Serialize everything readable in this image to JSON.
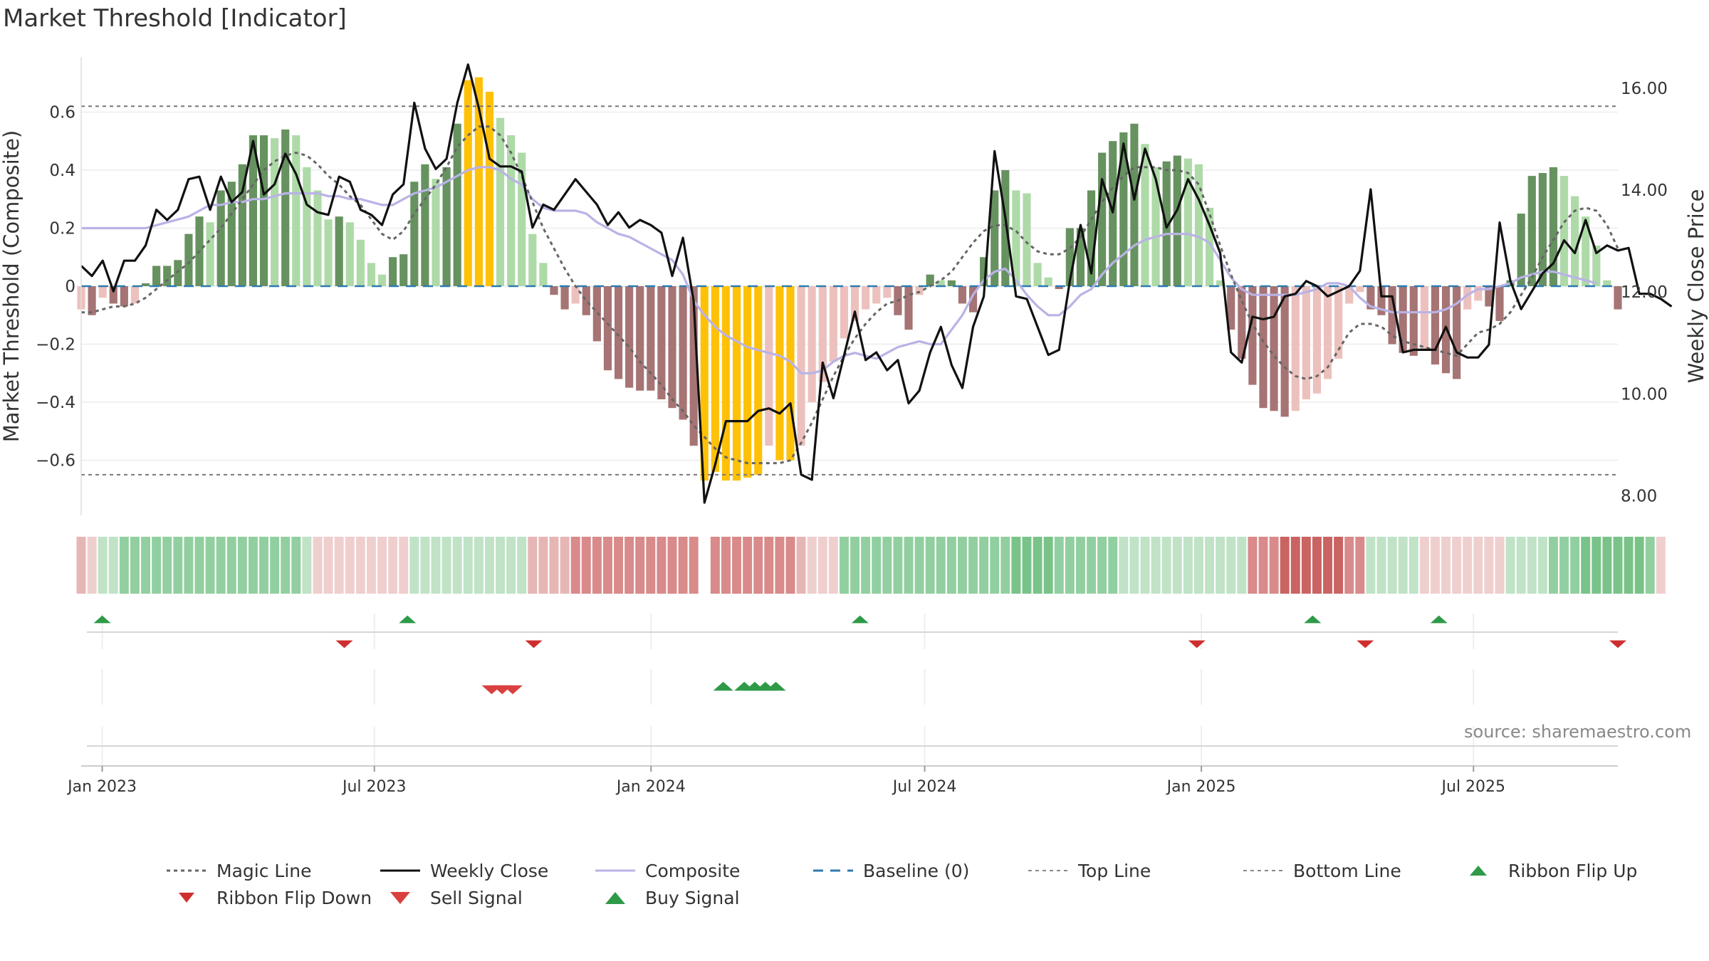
{
  "title": "Market Threshold [Indicator]",
  "source": "source: sharemaestro.com",
  "colors": {
    "bull_dark": "#66925f",
    "bull_light": "#aedaa8",
    "bear_dark": "#a67474",
    "bear_light": "#ecc1bd",
    "extreme": "#ffc107",
    "close": "#111111",
    "composite": "#b9b3e6",
    "magic": "#666666",
    "baseline": "#2e7bb0",
    "buy": "#2e9a48",
    "sell": "#d9403f",
    "flip_down": "#cf2e2e"
  },
  "chart_data": {
    "type": "bar",
    "title": "Market Threshold [Indicator]",
    "ylabel": "Market Threshold (Composite)",
    "y2label": "Weekly Close Price",
    "ylim": [
      -0.79,
      0.79
    ],
    "y2lim": [
      7.6,
      16.6
    ],
    "yticks": [
      0.6,
      0.4,
      0.2,
      0,
      -0.2,
      -0.4,
      -0.6
    ],
    "ytick_labels": [
      "0.6",
      "0.4",
      "0.2",
      "0",
      "−0.2",
      "−0.4",
      "−0.6"
    ],
    "y2ticks": [
      16,
      14,
      12,
      10,
      8
    ],
    "y2tick_labels": [
      "16.00",
      "14.00",
      "12.00",
      "10.00",
      "8.00"
    ],
    "x_start_date": "2022-12-18",
    "x_end_date": "2025-10-05",
    "x_ticks": [
      {
        "date": "2023-01-01",
        "label": "Jan 2023"
      },
      {
        "date": "2023-07-01",
        "label": "Jul 2023"
      },
      {
        "date": "2024-01-01",
        "label": "Jan 2024"
      },
      {
        "date": "2024-07-01",
        "label": "Jul 2024"
      },
      {
        "date": "2025-01-01",
        "label": "Jan 2025"
      },
      {
        "date": "2025-07-01",
        "label": "Jul 2025"
      }
    ],
    "top_line": 0.62,
    "bottom_line": -0.65,
    "baseline": 0,
    "composite_bars": [
      -0.08,
      -0.1,
      -0.04,
      -0.06,
      -0.07,
      -0.06,
      0.01,
      0.07,
      0.07,
      0.09,
      0.18,
      0.24,
      0.22,
      0.33,
      0.36,
      0.42,
      0.52,
      0.52,
      0.51,
      0.54,
      0.52,
      0.41,
      0.33,
      0.23,
      0.24,
      0.22,
      0.16,
      0.08,
      0.04,
      0.1,
      0.11,
      0.36,
      0.42,
      0.37,
      0.41,
      0.56,
      0.71,
      0.72,
      0.67,
      0.58,
      0.52,
      0.46,
      0.18,
      0.08,
      -0.03,
      -0.08,
      -0.06,
      -0.1,
      -0.19,
      -0.29,
      -0.32,
      -0.35,
      -0.36,
      -0.36,
      -0.39,
      -0.42,
      -0.46,
      -0.55,
      -0.67,
      -0.64,
      -0.67,
      -0.67,
      -0.66,
      -0.65,
      -0.55,
      -0.6,
      -0.6,
      -0.55,
      -0.4,
      -0.33,
      -0.26,
      -0.18,
      -0.12,
      -0.08,
      -0.06,
      -0.04,
      -0.1,
      -0.15,
      -0.03,
      0.04,
      0.02,
      0.02,
      -0.06,
      -0.09,
      0.1,
      0.33,
      0.4,
      0.33,
      0.32,
      0.08,
      0.03,
      -0.01,
      0.2,
      0.2,
      0.33,
      0.46,
      0.5,
      0.53,
      0.56,
      0.49,
      0.41,
      0.43,
      0.45,
      0.44,
      0.42,
      0.27,
      0.02,
      -0.15,
      -0.25,
      -0.34,
      -0.42,
      -0.43,
      -0.45,
      -0.43,
      -0.39,
      -0.37,
      -0.32,
      -0.25,
      -0.06,
      -0.02,
      -0.08,
      -0.1,
      -0.2,
      -0.23,
      -0.24,
      -0.22,
      -0.27,
      -0.3,
      -0.32,
      -0.08,
      -0.05,
      -0.07,
      -0.12,
      0.02,
      0.25,
      0.38,
      0.39,
      0.41,
      0.38,
      0.31,
      0.24,
      0.14,
      0.02,
      -0.08
    ],
    "weekly_close": [
      12.5,
      12.3,
      12.6,
      12.0,
      12.6,
      12.6,
      12.9,
      13.6,
      13.4,
      13.6,
      14.2,
      14.25,
      13.6,
      14.25,
      13.75,
      13.95,
      14.95,
      13.9,
      14.1,
      14.7,
      14.3,
      13.7,
      13.55,
      13.5,
      14.25,
      14.15,
      13.6,
      13.5,
      13.3,
      13.9,
      14.1,
      15.7,
      14.8,
      14.4,
      14.6,
      15.7,
      16.45,
      15.6,
      14.6,
      14.45,
      14.45,
      14.35,
      13.25,
      13.7,
      13.6,
      13.9,
      14.2,
      13.95,
      13.7,
      13.3,
      13.55,
      13.25,
      13.4,
      13.3,
      13.15,
      12.3,
      13.05,
      11.8,
      7.85,
      8.6,
      9.45,
      9.45,
      9.45,
      9.65,
      9.7,
      9.6,
      9.8,
      8.4,
      8.3,
      10.6,
      9.9,
      10.75,
      11.6,
      10.65,
      10.8,
      10.45,
      10.65,
      9.8,
      10.05,
      10.8,
      11.3,
      10.55,
      10.1,
      11.3,
      11.9,
      14.75,
      13.45,
      11.9,
      11.85,
      11.3,
      10.75,
      10.85,
      12.2,
      13.3,
      12.35,
      14.2,
      13.55,
      14.9,
      13.8,
      14.8,
      14.2,
      13.25,
      13.6,
      14.2,
      13.8,
      13.3,
      12.75,
      10.8,
      10.6,
      11.5,
      11.45,
      11.5,
      11.9,
      11.95,
      12.2,
      12.1,
      11.9,
      12.0,
      12.1,
      12.4,
      14.0,
      11.9,
      11.9,
      10.8,
      10.85,
      10.85,
      10.85,
      11.3,
      10.8,
      10.7,
      10.7,
      10.95,
      13.35,
      12.2,
      11.65,
      12.0,
      12.35,
      12.55,
      13.0,
      12.75,
      13.4,
      12.75,
      12.9,
      12.8,
      12.85,
      11.95,
      11.95,
      11.85,
      11.7
    ],
    "composite_line": [
      0.2,
      0.2,
      0.2,
      0.2,
      0.2,
      0.2,
      0.2,
      0.21,
      0.22,
      0.23,
      0.24,
      0.26,
      0.28,
      0.28,
      0.29,
      0.29,
      0.3,
      0.3,
      0.31,
      0.32,
      0.32,
      0.32,
      0.32,
      0.31,
      0.31,
      0.3,
      0.3,
      0.29,
      0.28,
      0.28,
      0.3,
      0.32,
      0.33,
      0.34,
      0.36,
      0.38,
      0.4,
      0.41,
      0.41,
      0.4,
      0.37,
      0.35,
      0.3,
      0.27,
      0.26,
      0.26,
      0.26,
      0.25,
      0.22,
      0.2,
      0.18,
      0.17,
      0.15,
      0.13,
      0.11,
      0.09,
      0.04,
      -0.05,
      -0.1,
      -0.14,
      -0.17,
      -0.19,
      -0.21,
      -0.22,
      -0.23,
      -0.24,
      -0.26,
      -0.3,
      -0.3,
      -0.29,
      -0.26,
      -0.24,
      -0.23,
      -0.24,
      -0.25,
      -0.23,
      -0.21,
      -0.2,
      -0.19,
      -0.2,
      -0.2,
      -0.15,
      -0.1,
      -0.03,
      0.02,
      0.05,
      0.06,
      0.02,
      -0.03,
      -0.07,
      -0.1,
      -0.1,
      -0.07,
      -0.03,
      -0.01,
      0.04,
      0.08,
      0.11,
      0.14,
      0.16,
      0.17,
      0.18,
      0.18,
      0.18,
      0.17,
      0.15,
      0.09,
      0.03,
      -0.01,
      -0.03,
      -0.03,
      -0.03,
      -0.03,
      -0.03,
      -0.02,
      -0.01,
      0.01,
      0.01,
      0.0,
      -0.04,
      -0.07,
      -0.08,
      -0.09,
      -0.09,
      -0.09,
      -0.09,
      -0.09,
      -0.08,
      -0.06,
      -0.03,
      -0.01,
      -0.01,
      0.0,
      0.01,
      0.03,
      0.04,
      0.05,
      0.05,
      0.04,
      0.03,
      0.02,
      0.01
    ],
    "magic_line": [
      -0.09,
      -0.09,
      -0.08,
      -0.07,
      -0.07,
      -0.06,
      -0.04,
      -0.01,
      0.02,
      0.05,
      0.08,
      0.12,
      0.16,
      0.2,
      0.25,
      0.3,
      0.35,
      0.4,
      0.43,
      0.45,
      0.46,
      0.45,
      0.42,
      0.38,
      0.35,
      0.31,
      0.28,
      0.23,
      0.18,
      0.16,
      0.19,
      0.25,
      0.3,
      0.35,
      0.41,
      0.48,
      0.52,
      0.55,
      0.55,
      0.52,
      0.46,
      0.38,
      0.29,
      0.2,
      0.13,
      0.06,
      0.0,
      -0.05,
      -0.09,
      -0.13,
      -0.17,
      -0.21,
      -0.26,
      -0.3,
      -0.34,
      -0.39,
      -0.43,
      -0.48,
      -0.52,
      -0.56,
      -0.59,
      -0.6,
      -0.61,
      -0.61,
      -0.61,
      -0.61,
      -0.6,
      -0.54,
      -0.47,
      -0.39,
      -0.31,
      -0.24,
      -0.18,
      -0.13,
      -0.09,
      -0.06,
      -0.05,
      -0.03,
      -0.02,
      0.0,
      0.02,
      0.05,
      0.1,
      0.15,
      0.19,
      0.21,
      0.21,
      0.19,
      0.15,
      0.12,
      0.11,
      0.11,
      0.13,
      0.17,
      0.23,
      0.29,
      0.34,
      0.38,
      0.41,
      0.41,
      0.41,
      0.4,
      0.4,
      0.39,
      0.35,
      0.25,
      0.14,
      0.04,
      -0.05,
      -0.13,
      -0.19,
      -0.24,
      -0.28,
      -0.31,
      -0.32,
      -0.31,
      -0.28,
      -0.22,
      -0.16,
      -0.13,
      -0.13,
      -0.14,
      -0.17,
      -0.19,
      -0.2,
      -0.21,
      -0.22,
      -0.23,
      -0.24,
      -0.2,
      -0.16,
      -0.15,
      -0.13,
      -0.09,
      -0.03,
      0.03,
      0.1,
      0.16,
      0.22,
      0.26,
      0.27,
      0.26,
      0.21,
      0.13
    ],
    "ribbon": [
      -2,
      -1,
      1,
      1,
      2,
      2,
      2,
      2,
      2,
      2,
      2,
      2,
      2,
      2,
      2,
      2,
      2,
      2,
      2,
      2,
      2,
      1,
      -1,
      -1,
      -1,
      -1,
      -1,
      -1,
      -1,
      -1,
      -1,
      1,
      1,
      1,
      1,
      1,
      1,
      1,
      1,
      1,
      1,
      1,
      -2,
      -2,
      -2,
      -2,
      -3,
      -3,
      -3,
      -3,
      -3,
      -3,
      -3,
      -3,
      -3,
      -3,
      -3,
      -3,
      null,
      -3,
      -3,
      -3,
      -3,
      -3,
      -3,
      -3,
      -3,
      -2,
      -1,
      -1,
      -1,
      2,
      2,
      2,
      2,
      2,
      2,
      2,
      2,
      2,
      2,
      2,
      2,
      2,
      2,
      2,
      2,
      3,
      3,
      3,
      3,
      2,
      2,
      2,
      2,
      2,
      2,
      1,
      1,
      1,
      1,
      1,
      1,
      1,
      1,
      1,
      1,
      1,
      1,
      -3,
      -3,
      -3,
      -4,
      -4,
      -4,
      -4,
      -4,
      -4,
      -3,
      -3,
      1,
      1,
      1,
      1,
      1,
      -1,
      -1,
      -1,
      -1,
      -1,
      -1,
      -1,
      -1,
      1,
      1,
      1,
      1,
      2,
      2,
      2,
      3,
      3,
      3,
      3,
      3,
      3,
      2,
      -1
    ],
    "ribbon_flip_up": [
      "2023-01-01",
      "2023-07-23",
      "2024-05-19",
      "2025-03-16",
      "2025-06-08"
    ],
    "ribbon_flip_down": [
      "2023-06-11",
      "2023-10-15",
      "2024-12-29",
      "2025-04-20",
      "2025-10-05"
    ],
    "sell_signal": [
      "2023-09-17",
      "2023-09-24",
      "2023-10-01"
    ],
    "buy_signal": [
      "2024-02-18",
      "2024-03-03",
      "2024-03-10",
      "2024-03-17",
      "2024-03-24"
    ],
    "legend": [
      {
        "key": "magic",
        "label": "Magic Line"
      },
      {
        "key": "close",
        "label": "Weekly Close"
      },
      {
        "key": "composite",
        "label": "Composite"
      },
      {
        "key": "baseline",
        "label": "Baseline (0)"
      },
      {
        "key": "top",
        "label": "Top Line"
      },
      {
        "key": "bottom",
        "label": "Bottom Line"
      },
      {
        "key": "flip_up",
        "label": "Ribbon Flip Up"
      },
      {
        "key": "flip_down",
        "label": "Ribbon Flip Down"
      },
      {
        "key": "sell",
        "label": "Sell Signal"
      },
      {
        "key": "buy",
        "label": "Buy Signal"
      }
    ]
  }
}
